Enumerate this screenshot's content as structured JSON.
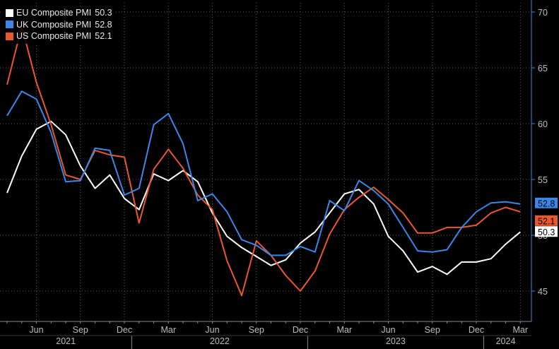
{
  "chart_data": {
    "type": "line",
    "title": "",
    "xlabel": "",
    "ylabel": "",
    "x": [
      "2021-04",
      "2021-05",
      "2021-06",
      "2021-07",
      "2021-08",
      "2021-09",
      "2021-10",
      "2021-11",
      "2021-12",
      "2022-01",
      "2022-02",
      "2022-03",
      "2022-04",
      "2022-05",
      "2022-06",
      "2022-07",
      "2022-08",
      "2022-09",
      "2022-10",
      "2022-11",
      "2022-12",
      "2023-01",
      "2023-02",
      "2023-03",
      "2023-04",
      "2023-05",
      "2023-06",
      "2023-07",
      "2023-08",
      "2023-09",
      "2023-10",
      "2023-11",
      "2023-12",
      "2024-01",
      "2024-02",
      "2024-03"
    ],
    "x_ticks": [
      {
        "date": "2021-06",
        "label": "Jun"
      },
      {
        "date": "2021-09",
        "label": "Sep"
      },
      {
        "date": "2021-12",
        "label": "Dec"
      },
      {
        "date": "2022-03",
        "label": "Mar"
      },
      {
        "date": "2022-06",
        "label": "Jun"
      },
      {
        "date": "2022-09",
        "label": "Sep"
      },
      {
        "date": "2022-12",
        "label": "Dec"
      },
      {
        "date": "2023-03",
        "label": "Mar"
      },
      {
        "date": "2023-06",
        "label": "Jun"
      },
      {
        "date": "2023-09",
        "label": "Sep"
      },
      {
        "date": "2023-12",
        "label": "Dec"
      },
      {
        "date": "2024-03",
        "label": "Mar"
      }
    ],
    "year_labels": [
      {
        "label": "2021",
        "start": "2021-04",
        "end": "2021-12"
      },
      {
        "label": "2022",
        "start": "2022-01",
        "end": "2022-12"
      },
      {
        "label": "2023",
        "start": "2023-01",
        "end": "2023-12"
      },
      {
        "label": "2024",
        "start": "2024-01",
        "end": "2024-03"
      }
    ],
    "y_ticks": [
      45,
      50,
      55,
      60,
      65,
      70
    ],
    "ylim": [
      43,
      71
    ],
    "grid": true,
    "legend_position": "top-left",
    "series": [
      {
        "name": "EU Composite PMI",
        "last_label": "50.3",
        "color": "#ffffff",
        "values": [
          53.8,
          57.1,
          59.5,
          60.2,
          59.0,
          56.2,
          54.2,
          55.4,
          53.3,
          52.3,
          55.5,
          54.9,
          55.8,
          54.8,
          52.0,
          49.9,
          48.9,
          48.1,
          47.3,
          47.8,
          49.3,
          50.3,
          52.0,
          53.7,
          54.1,
          52.8,
          49.9,
          48.6,
          46.7,
          47.2,
          46.5,
          47.6,
          47.6,
          47.9,
          49.2,
          50.3
        ]
      },
      {
        "name": "UK Composite PMI",
        "last_label": "52.8",
        "color": "#3b87e8",
        "values": [
          60.7,
          62.9,
          62.2,
          59.2,
          54.8,
          54.9,
          57.8,
          57.6,
          53.6,
          54.2,
          59.9,
          60.9,
          58.2,
          53.1,
          53.7,
          52.1,
          49.6,
          49.1,
          48.2,
          48.2,
          49.0,
          48.5,
          53.1,
          52.2,
          54.9,
          54.0,
          52.8,
          50.7,
          48.6,
          48.5,
          48.7,
          50.7,
          52.1,
          52.9,
          53.0,
          52.8
        ]
      },
      {
        "name": "US Composite PMI",
        "last_label": "52.1",
        "color": "#e8582b",
        "values": [
          63.5,
          68.7,
          63.7,
          59.9,
          55.4,
          55.0,
          57.6,
          57.2,
          57.0,
          51.1,
          55.9,
          57.7,
          56.0,
          53.6,
          52.3,
          47.7,
          44.6,
          49.5,
          48.2,
          46.4,
          45.0,
          46.8,
          50.1,
          52.3,
          53.4,
          54.3,
          53.2,
          52.0,
          50.2,
          50.2,
          50.7,
          50.7,
          50.9,
          52.0,
          52.5,
          52.1
        ]
      }
    ]
  }
}
